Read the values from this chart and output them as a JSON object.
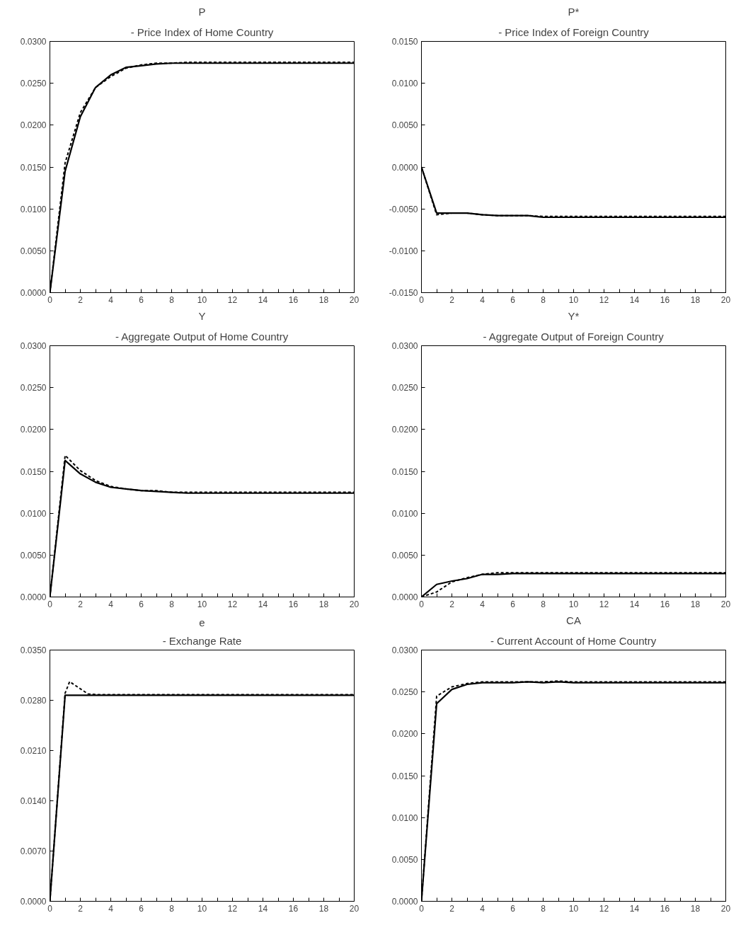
{
  "chart_data": [
    {
      "type": "line",
      "title": "P",
      "subtitle": "- Price Index of Home Country",
      "grid": false,
      "xlim": [
        0,
        20
      ],
      "ylim": [
        0,
        0.03
      ],
      "xticks": [
        0,
        {
          "value": 1,
          "label": null
        },
        2,
        {
          "value": 3,
          "label": null
        },
        4,
        {
          "value": 5,
          "label": null
        },
        6,
        {
          "value": 7,
          "label": null
        },
        8,
        {
          "value": 9,
          "label": null
        },
        10,
        {
          "value": 11,
          "label": null
        },
        12,
        {
          "value": 13,
          "label": null
        },
        14,
        {
          "value": 15,
          "label": null
        },
        16,
        {
          "value": 17,
          "label": null
        },
        18,
        {
          "value": 19,
          "label": null
        },
        20
      ],
      "yticks": [
        {
          "value": 0,
          "label": "0.0000"
        },
        {
          "value": 0.005,
          "label": "0.0050"
        },
        {
          "value": 0.01,
          "label": "0.0100"
        },
        {
          "value": 0.015,
          "label": "0.0150"
        },
        {
          "value": 0.02,
          "label": "0.0200"
        },
        {
          "value": 0.025,
          "label": "0.0250"
        },
        {
          "value": 0.03,
          "label": "0.0300"
        }
      ],
      "x": [
        0,
        1,
        2,
        3,
        4,
        5,
        6,
        7,
        8,
        9,
        10,
        11,
        12,
        13,
        14,
        15,
        16,
        17,
        18,
        19,
        20
      ],
      "series": [
        {
          "color": "#000000",
          "line_style": "solid",
          "values": [
            0,
            0.0145,
            0.021,
            0.0245,
            0.026,
            0.0269,
            0.0271,
            0.0273,
            0.0274,
            0.0274,
            0.0274,
            0.0274,
            0.0274,
            0.0274,
            0.0274,
            0.0274,
            0.0274,
            0.0274,
            0.0274,
            0.0274,
            0.0274
          ]
        },
        {
          "color": "#000000",
          "line_style": "dashed",
          "values": [
            0,
            0.0155,
            0.0215,
            0.0245,
            0.0258,
            0.0268,
            0.0272,
            0.0274,
            0.0274,
            0.0275,
            0.0275,
            0.0275,
            0.0275,
            0.0275,
            0.0275,
            0.0275,
            0.0275,
            0.0275,
            0.0275,
            0.0275,
            0.0275
          ]
        }
      ]
    },
    {
      "type": "line",
      "title": "P*",
      "subtitle": "- Price Index of Foreign Country",
      "grid": false,
      "xlim": [
        0,
        20
      ],
      "ylim": [
        -0.015,
        0.015
      ],
      "xticks": [
        0,
        {
          "value": 1,
          "label": null
        },
        2,
        {
          "value": 3,
          "label": null
        },
        4,
        {
          "value": 5,
          "label": null
        },
        6,
        {
          "value": 7,
          "label": null
        },
        8,
        {
          "value": 9,
          "label": null
        },
        10,
        {
          "value": 11,
          "label": null
        },
        12,
        {
          "value": 13,
          "label": null
        },
        14,
        {
          "value": 15,
          "label": null
        },
        16,
        {
          "value": 17,
          "label": null
        },
        18,
        {
          "value": 19,
          "label": null
        },
        20
      ],
      "yticks": [
        {
          "value": -0.015,
          "label": "-0.0150"
        },
        {
          "value": -0.01,
          "label": "-0.0100"
        },
        {
          "value": -0.005,
          "label": "-0.0050"
        },
        {
          "value": 0,
          "label": "0.0000"
        },
        {
          "value": 0.005,
          "label": "0.0050"
        },
        {
          "value": 0.01,
          "label": "0.0100"
        },
        {
          "value": 0.015,
          "label": "0.0150"
        }
      ],
      "x": [
        0,
        1,
        2,
        3,
        4,
        5,
        6,
        7,
        8,
        9,
        10,
        11,
        12,
        13,
        14,
        15,
        16,
        17,
        18,
        19,
        20
      ],
      "series": [
        {
          "color": "#000000",
          "line_style": "solid",
          "values": [
            0,
            -0.0055,
            -0.0055,
            -0.0055,
            -0.0057,
            -0.0058,
            -0.0058,
            -0.0058,
            -0.006,
            -0.006,
            -0.006,
            -0.006,
            -0.006,
            -0.006,
            -0.006,
            -0.006,
            -0.006,
            -0.006,
            -0.006,
            -0.006,
            -0.006
          ]
        },
        {
          "color": "#000000",
          "line_style": "dashed",
          "values": [
            0,
            -0.0057,
            -0.0055,
            -0.0055,
            -0.0057,
            -0.0058,
            -0.0058,
            -0.0058,
            -0.0059,
            -0.0059,
            -0.0059,
            -0.0059,
            -0.0059,
            -0.0059,
            -0.0059,
            -0.0059,
            -0.0059,
            -0.0059,
            -0.0059,
            -0.0059,
            -0.0059
          ]
        }
      ]
    },
    {
      "type": "line",
      "title": "Y",
      "subtitle": "- Aggregate Output of Home Country",
      "grid": false,
      "xlim": [
        0,
        20
      ],
      "ylim": [
        0,
        0.03
      ],
      "xticks": [
        0,
        {
          "value": 1,
          "label": null
        },
        2,
        {
          "value": 3,
          "label": null
        },
        4,
        {
          "value": 5,
          "label": null
        },
        6,
        {
          "value": 7,
          "label": null
        },
        8,
        {
          "value": 9,
          "label": null
        },
        10,
        {
          "value": 11,
          "label": null
        },
        12,
        {
          "value": 13,
          "label": null
        },
        14,
        {
          "value": 15,
          "label": null
        },
        16,
        {
          "value": 17,
          "label": null
        },
        18,
        {
          "value": 19,
          "label": null
        },
        20
      ],
      "yticks": [
        {
          "value": 0,
          "label": "0.0000"
        },
        {
          "value": 0.005,
          "label": "0.0050"
        },
        {
          "value": 0.01,
          "label": "0.0100"
        },
        {
          "value": 0.015,
          "label": "0.0150"
        },
        {
          "value": 0.02,
          "label": "0.0200"
        },
        {
          "value": 0.025,
          "label": "0.0250"
        },
        {
          "value": 0.03,
          "label": "0.0300"
        }
      ],
      "x": [
        0,
        1,
        2,
        3,
        4,
        5,
        6,
        7,
        8,
        9,
        10,
        11,
        12,
        13,
        14,
        15,
        16,
        17,
        18,
        19,
        20
      ],
      "series": [
        {
          "color": "#000000",
          "line_style": "solid",
          "values": [
            0,
            0.0163,
            0.0147,
            0.0137,
            0.0131,
            0.0129,
            0.0127,
            0.0126,
            0.0125,
            0.0124,
            0.0124,
            0.0124,
            0.0124,
            0.0124,
            0.0124,
            0.0124,
            0.0124,
            0.0124,
            0.0124,
            0.0124,
            0.0124
          ]
        },
        {
          "color": "#000000",
          "line_style": "dashed",
          "values": [
            0,
            0.0169,
            0.0151,
            0.0139,
            0.0132,
            0.0129,
            0.0127,
            0.0127,
            0.0125,
            0.0125,
            0.0125,
            0.0125,
            0.0125,
            0.0125,
            0.0125,
            0.0125,
            0.0125,
            0.0125,
            0.0125,
            0.0125,
            0.0125
          ]
        }
      ]
    },
    {
      "type": "line",
      "title": "Y*",
      "subtitle": "- Aggregate Output of Foreign Country",
      "grid": false,
      "xlim": [
        0,
        20
      ],
      "ylim": [
        0,
        0.03
      ],
      "xticks": [
        0,
        {
          "value": 1,
          "label": null
        },
        2,
        {
          "value": 3,
          "label": null
        },
        4,
        {
          "value": 5,
          "label": null
        },
        6,
        {
          "value": 7,
          "label": null
        },
        8,
        {
          "value": 9,
          "label": null
        },
        10,
        {
          "value": 11,
          "label": null
        },
        12,
        {
          "value": 13,
          "label": null
        },
        14,
        {
          "value": 15,
          "label": null
        },
        16,
        {
          "value": 17,
          "label": null
        },
        18,
        {
          "value": 19,
          "label": null
        },
        20
      ],
      "yticks": [
        {
          "value": 0,
          "label": "0.0000"
        },
        {
          "value": 0.005,
          "label": "0.0050"
        },
        {
          "value": 0.01,
          "label": "0.0100"
        },
        {
          "value": 0.015,
          "label": "0.0150"
        },
        {
          "value": 0.02,
          "label": "0.0200"
        },
        {
          "value": 0.025,
          "label": "0.0250"
        },
        {
          "value": 0.03,
          "label": "0.0300"
        }
      ],
      "x": [
        0,
        1,
        2,
        3,
        4,
        5,
        6,
        7,
        8,
        9,
        10,
        11,
        12,
        13,
        14,
        15,
        16,
        17,
        18,
        19,
        20
      ],
      "series": [
        {
          "color": "#000000",
          "line_style": "solid",
          "values": [
            0,
            0.0015,
            0.0019,
            0.0022,
            0.0027,
            0.0027,
            0.0028,
            0.0028,
            0.0028,
            0.0028,
            0.0028,
            0.0028,
            0.0028,
            0.0028,
            0.0028,
            0.0028,
            0.0028,
            0.0028,
            0.0028,
            0.0028,
            0.0028
          ]
        },
        {
          "color": "#000000",
          "line_style": "dashed",
          "values": [
            0,
            0.0006,
            0.0018,
            0.0023,
            0.0027,
            0.0029,
            0.0029,
            0.0029,
            0.0029,
            0.0029,
            0.0029,
            0.0029,
            0.0029,
            0.0029,
            0.0029,
            0.0029,
            0.0029,
            0.0029,
            0.0029,
            0.0029,
            0.0029
          ]
        }
      ]
    },
    {
      "type": "line",
      "title": "e",
      "subtitle": "- Exchange Rate",
      "grid": false,
      "xlim": [
        0,
        20
      ],
      "ylim": [
        0,
        0.035
      ],
      "xticks": [
        0,
        {
          "value": 1,
          "label": null
        },
        2,
        {
          "value": 3,
          "label": null
        },
        4,
        {
          "value": 5,
          "label": null
        },
        6,
        {
          "value": 7,
          "label": null
        },
        8,
        {
          "value": 9,
          "label": null
        },
        10,
        {
          "value": 11,
          "label": null
        },
        12,
        {
          "value": 13,
          "label": null
        },
        14,
        {
          "value": 15,
          "label": null
        },
        16,
        {
          "value": 17,
          "label": null
        },
        18,
        {
          "value": 19,
          "label": null
        },
        20
      ],
      "yticks": [
        {
          "value": 0,
          "label": "0.0000"
        },
        {
          "value": 0.007,
          "label": "0.0070"
        },
        {
          "value": 0.014,
          "label": "0.0140"
        },
        {
          "value": 0.021,
          "label": "0.0210"
        },
        {
          "value": 0.028,
          "label": "0.0280"
        },
        {
          "value": 0.035,
          "label": "0.0350"
        }
      ],
      "x": [
        0,
        1,
        2,
        3,
        4,
        5,
        6,
        7,
        8,
        9,
        10,
        11,
        12,
        13,
        14,
        15,
        16,
        17,
        18,
        19,
        20
      ],
      "series": [
        {
          "color": "#000000",
          "line_style": "solid",
          "values": [
            0,
            0.0287,
            0.0287,
            0.0287,
            0.0287,
            0.0287,
            0.0287,
            0.0287,
            0.0287,
            0.0287,
            0.0287,
            0.0287,
            0.0287,
            0.0287,
            0.0287,
            0.0287,
            0.0287,
            0.0287,
            0.0287,
            0.0287,
            0.0287
          ]
        },
        {
          "color": "#000000",
          "line_style": "dashed",
          "x": [
            0,
            1,
            1.3,
            2,
            2.5,
            3,
            4,
            5,
            6,
            7,
            8,
            9,
            10,
            11,
            12,
            13,
            14,
            15,
            16,
            17,
            18,
            19,
            20
          ],
          "values": [
            0,
            0.029,
            0.0306,
            0.0296,
            0.0289,
            0.0288,
            0.0288,
            0.0288,
            0.0288,
            0.0288,
            0.0288,
            0.0288,
            0.0288,
            0.0288,
            0.0288,
            0.0288,
            0.0288,
            0.0288,
            0.0288,
            0.0288,
            0.0288,
            0.0288,
            0.0288
          ]
        }
      ]
    },
    {
      "type": "line",
      "title": "CA",
      "subtitle": "- Current Account of Home Country",
      "grid": false,
      "xlim": [
        0,
        20
      ],
      "ylim": [
        0,
        0.03
      ],
      "xticks": [
        0,
        {
          "value": 1,
          "label": null
        },
        2,
        {
          "value": 3,
          "label": null
        },
        4,
        {
          "value": 5,
          "label": null
        },
        6,
        {
          "value": 7,
          "label": null
        },
        8,
        {
          "value": 9,
          "label": null
        },
        10,
        {
          "value": 11,
          "label": null
        },
        12,
        {
          "value": 13,
          "label": null
        },
        14,
        {
          "value": 15,
          "label": null
        },
        16,
        {
          "value": 17,
          "label": null
        },
        18,
        {
          "value": 19,
          "label": null
        },
        20
      ],
      "yticks": [
        {
          "value": 0,
          "label": "0.0000"
        },
        {
          "value": 0.005,
          "label": "0.0050"
        },
        {
          "value": 0.01,
          "label": "0.0100"
        },
        {
          "value": 0.015,
          "label": "0.0150"
        },
        {
          "value": 0.02,
          "label": "0.0200"
        },
        {
          "value": 0.025,
          "label": "0.0250"
        },
        {
          "value": 0.03,
          "label": "0.0300"
        }
      ],
      "x": [
        0,
        1,
        2,
        3,
        4,
        5,
        6,
        7,
        8,
        9,
        10,
        11,
        12,
        13,
        14,
        15,
        16,
        17,
        18,
        19,
        20
      ],
      "series": [
        {
          "color": "#000000",
          "line_style": "solid",
          "values": [
            0,
            0.0236,
            0.0253,
            0.0259,
            0.0261,
            0.0261,
            0.0261,
            0.0262,
            0.0261,
            0.0262,
            0.0261,
            0.0261,
            0.0261,
            0.0261,
            0.0261,
            0.0261,
            0.0261,
            0.0261,
            0.0261,
            0.0261,
            0.0261
          ]
        },
        {
          "color": "#000000",
          "line_style": "dashed",
          "values": [
            0,
            0.0245,
            0.0256,
            0.026,
            0.0262,
            0.0262,
            0.0262,
            0.0262,
            0.0262,
            0.0263,
            0.0262,
            0.0262,
            0.0262,
            0.0262,
            0.0262,
            0.0262,
            0.0262,
            0.0262,
            0.0262,
            0.0262,
            0.0262
          ]
        }
      ]
    }
  ]
}
